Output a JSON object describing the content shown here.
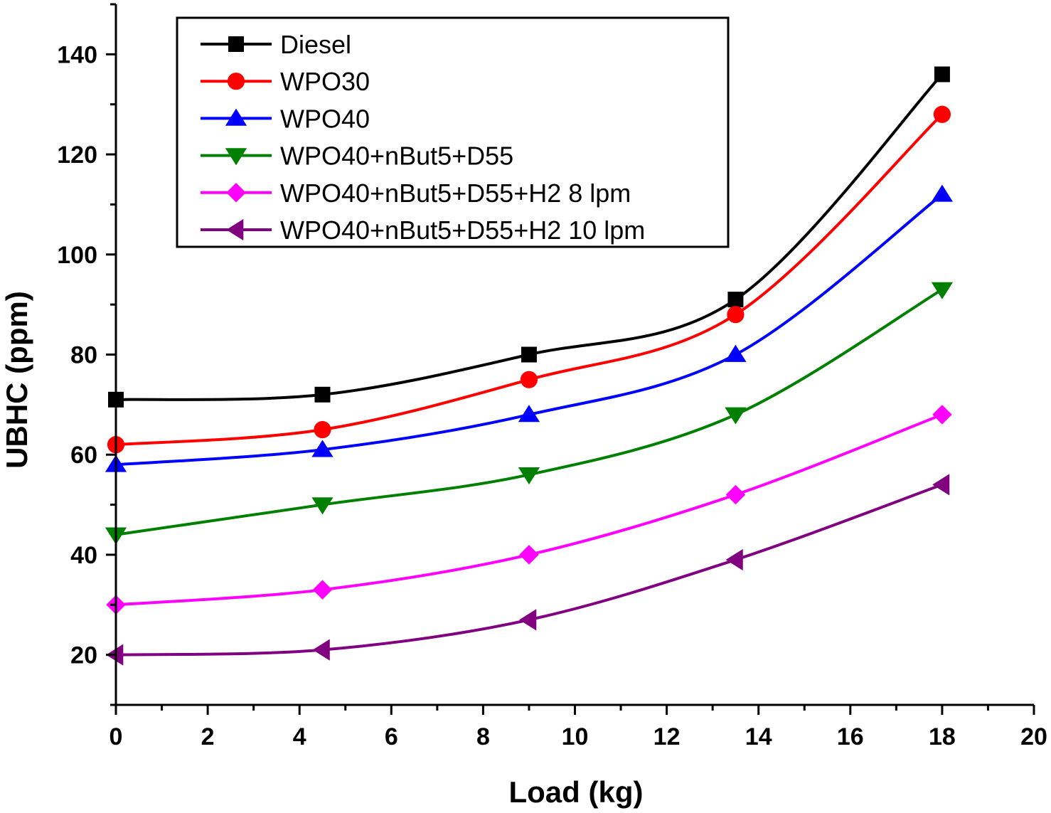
{
  "chart_data": {
    "type": "line",
    "xlabel": "Load (kg)",
    "ylabel": "UBHC (ppm)",
    "xlim": [
      0,
      20
    ],
    "ylim": [
      10,
      150
    ],
    "xticks": [
      0,
      2,
      4,
      6,
      8,
      10,
      12,
      14,
      16,
      18,
      20
    ],
    "yticks": [
      20,
      40,
      60,
      80,
      100,
      120,
      140
    ],
    "grid": false,
    "legend_position": "top-left",
    "x": [
      0,
      4.5,
      9,
      13.5,
      18
    ],
    "series": [
      {
        "name": "Diesel",
        "values": [
          71,
          72,
          80,
          91,
          136
        ],
        "color": "#000000",
        "marker": "square"
      },
      {
        "name": "WPO30",
        "values": [
          62,
          65,
          75,
          88,
          128
        ],
        "color": "#ff0000",
        "marker": "circle"
      },
      {
        "name": "WPO40",
        "values": [
          58,
          61,
          68,
          80,
          112
        ],
        "color": "#0000ff",
        "marker": "triangle-up"
      },
      {
        "name": "WPO40+nBut5+D55",
        "values": [
          44,
          50,
          56,
          68,
          93
        ],
        "color": "#008000",
        "marker": "triangle-down"
      },
      {
        "name": "WPO40+nBut5+D55+H2 8 lpm",
        "values": [
          30,
          33,
          40,
          52,
          68
        ],
        "color": "#ff00ff",
        "marker": "diamond"
      },
      {
        "name": "WPO40+nBut5+D55+H2 10 lpm",
        "values": [
          20,
          21,
          27,
          39,
          54
        ],
        "color": "#800080",
        "marker": "triangle-left"
      }
    ]
  }
}
